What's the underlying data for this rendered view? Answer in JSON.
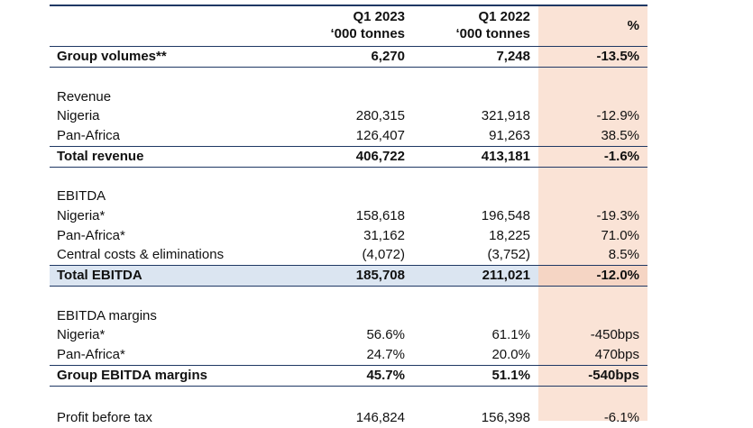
{
  "header": {
    "col1_line1": "Q1 2023",
    "col1_line2": "‘000 tonnes",
    "col2_line1": "Q1 2022",
    "col2_line2": "‘000 tonnes",
    "col3": "%"
  },
  "rows": [
    {
      "label": "Group volumes**",
      "c1": "6,270",
      "c2": "7,248",
      "c3": "-13.5%"
    },
    {
      "label": "Revenue",
      "c1": "",
      "c2": "",
      "c3": ""
    },
    {
      "label": "Nigeria",
      "c1": "280,315",
      "c2": "321,918",
      "c3": "-12.9%"
    },
    {
      "label": "Pan-Africa",
      "c1": "126,407",
      "c2": "91,263",
      "c3": "38.5%"
    },
    {
      "label": "Total revenue",
      "c1": "406,722",
      "c2": "413,181",
      "c3": "-1.6%"
    },
    {
      "label": "EBITDA",
      "c1": "",
      "c2": "",
      "c3": ""
    },
    {
      "label": "Nigeria*",
      "c1": "158,618",
      "c2": "196,548",
      "c3": "-19.3%"
    },
    {
      "label": "Pan-Africa*",
      "c1": "31,162",
      "c2": "18,225",
      "c3": "71.0%"
    },
    {
      "label": "Central costs & eliminations",
      "c1": "(4,072)",
      "c2": "(3,752)",
      "c3": "8.5%"
    },
    {
      "label": "Total EBITDA",
      "c1": "185,708",
      "c2": "211,021",
      "c3": "-12.0%"
    },
    {
      "label": "EBITDA margins",
      "c1": "",
      "c2": "",
      "c3": ""
    },
    {
      "label": "Nigeria*",
      "c1": "56.6%",
      "c2": "61.1%",
      "c3": "-450bps"
    },
    {
      "label": "Pan-Africa*",
      "c1": "24.7%",
      "c2": "20.0%",
      "c3": "470bps"
    },
    {
      "label": "Group EBITDA margins",
      "c1": "45.7%",
      "c2": "51.1%",
      "c3": "-540bps"
    },
    {
      "label": "Profit before tax",
      "c1": "146,824",
      "c2": "156,398",
      "c3": "-6.1%"
    }
  ]
}
